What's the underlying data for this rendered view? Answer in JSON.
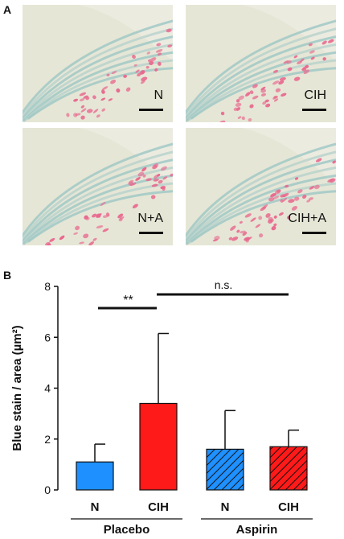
{
  "panel_a": {
    "label": "A",
    "images": [
      {
        "label": "N"
      },
      {
        "label": "CIH"
      },
      {
        "label": "N+A"
      },
      {
        "label": "CIH+A"
      }
    ]
  },
  "panel_b": {
    "label": "B"
  },
  "chart_data": {
    "type": "bar",
    "categories": [
      "N",
      "CIH",
      "N",
      "CIH"
    ],
    "values": [
      1.1,
      3.4,
      1.6,
      1.7
    ],
    "error_upper": [
      1.8,
      6.15,
      3.12,
      2.35
    ],
    "bar_colors": [
      "#1e90ff",
      "#ff1a1a",
      "#1e90ff",
      "#ff1a1a"
    ],
    "bar_hatched": [
      false,
      false,
      true,
      true
    ],
    "groups": [
      {
        "name": "Placebo",
        "categories": [
          0,
          1
        ]
      },
      {
        "name": "Aspirin",
        "categories": [
          2,
          3
        ]
      }
    ],
    "ylabel": "Blue stain / area (µm²)",
    "ylim": [
      0,
      8
    ],
    "yticks": [
      0,
      2,
      4,
      6,
      8
    ],
    "annotations": [
      {
        "text": "**",
        "from": 0,
        "to": 1
      },
      {
        "text": "n.s.",
        "from": 1,
        "to": 3
      }
    ]
  }
}
